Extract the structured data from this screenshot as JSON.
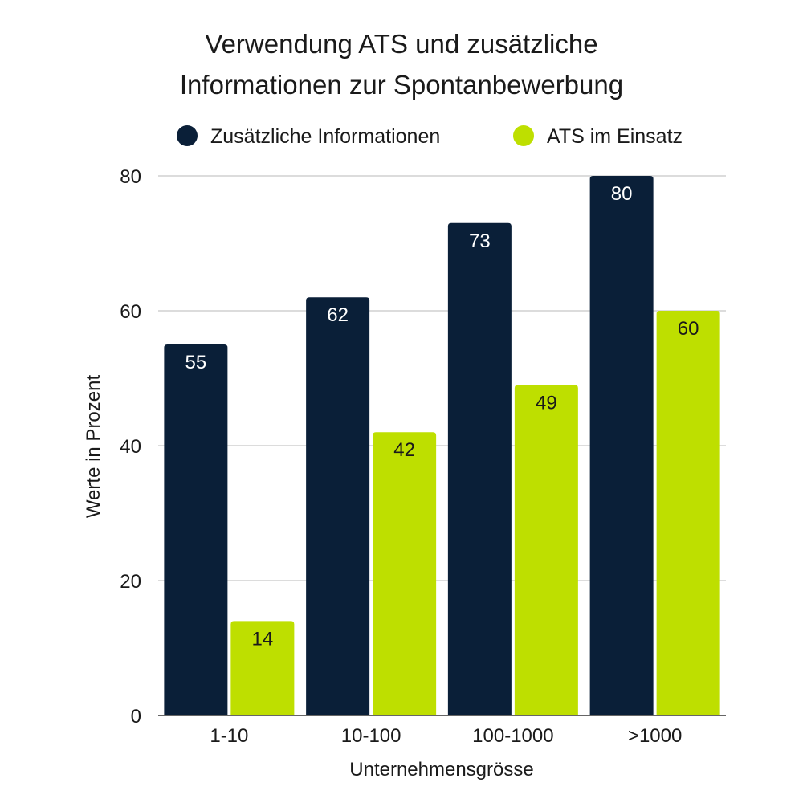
{
  "chart_data": {
    "type": "bar",
    "title": "Verwendung ATS und zusätzliche Informationen zur Spontanbewerbung",
    "title_lines": [
      "Verwendung ATS und zusätzliche",
      "Informationen zur Spontanbewerbung"
    ],
    "xlabel": "Unternehmensgrösse",
    "ylabel": "Werte in Prozent",
    "categories": [
      "1-10",
      "10-100",
      "100-1000",
      ">1000"
    ],
    "series": [
      {
        "name": "Zusätzliche Informationen",
        "color": "#0a1f38",
        "label_color": "#ffffff",
        "values": [
          55,
          62,
          73,
          80
        ]
      },
      {
        "name": "ATS im Einsatz",
        "color": "#bedf00",
        "label_color": "#1a1a1a",
        "values": [
          14,
          42,
          49,
          60
        ]
      }
    ],
    "ylim": [
      0,
      80
    ],
    "yticks": [
      0,
      20,
      40,
      60,
      80
    ],
    "grid": true,
    "legend_position": "top",
    "data_labels": true
  }
}
